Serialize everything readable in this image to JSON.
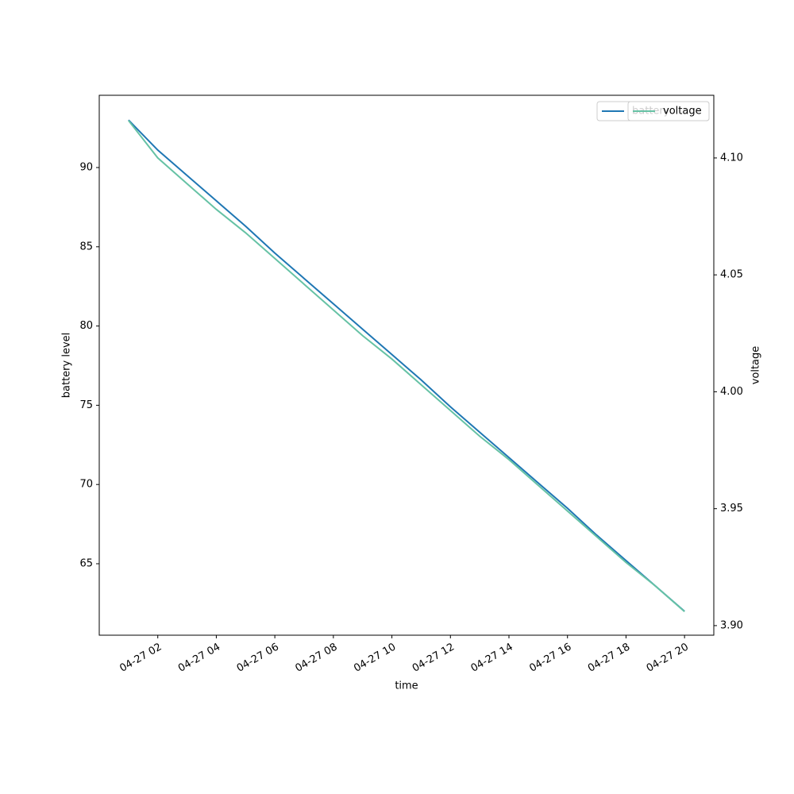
{
  "chart_data": {
    "type": "line",
    "x_label": "time",
    "y_label": "battery level",
    "y2_label": "voltage",
    "x": [
      "04-27 01",
      "04-27 02",
      "04-27 03",
      "04-27 04",
      "04-27 05",
      "04-27 06",
      "04-27 07",
      "04-27 08",
      "04-27 09",
      "04-27 10",
      "04-27 11",
      "04-27 12",
      "04-27 13",
      "04-27 14",
      "04-27 15",
      "04-27 16",
      "04-27 17",
      "04-27 18",
      "04-27 19",
      "04-27 20"
    ],
    "series": [
      {
        "name": "battery",
        "color": "#1f77b4",
        "values": [
          93,
          91.1,
          89.5,
          87.9,
          86.3,
          84.6,
          83.0,
          81.4,
          79.8,
          78.2,
          76.6,
          74.9,
          73.3,
          71.7,
          70.1,
          68.5,
          66.8,
          65.2,
          63.6,
          62.0
        ]
      },
      {
        "name": "voltage",
        "color": "#66c2a5",
        "axis": "y2",
        "values": [
          4.116,
          4.1,
          4.089,
          4.078,
          4.068,
          4.057,
          4.046,
          4.035,
          4.024,
          4.014,
          4.003,
          3.992,
          3.981,
          3.971,
          3.96,
          3.949,
          3.938,
          3.927,
          3.917,
          3.906
        ]
      }
    ],
    "xlim": [
      "04-27 00",
      "04-27 21"
    ],
    "xticks": [
      "04-27 02",
      "04-27 04",
      "04-27 06",
      "04-27 08",
      "04-27 10",
      "04-27 12",
      "04-27 14",
      "04-27 16",
      "04-27 18",
      "04-27 20"
    ],
    "ylim": [
      60.49,
      94.56
    ],
    "yticks": [
      65,
      70,
      75,
      80,
      85,
      90
    ],
    "y2lim": [
      3.8959,
      4.1268
    ],
    "y2ticks": [
      {
        "value": 3.9,
        "label": "3.90"
      },
      3.95,
      {
        "value": 4.0,
        "label": "4.00"
      },
      4.05,
      {
        "value": 4.1,
        "label": "4.10"
      }
    ],
    "legend": "upper right"
  }
}
